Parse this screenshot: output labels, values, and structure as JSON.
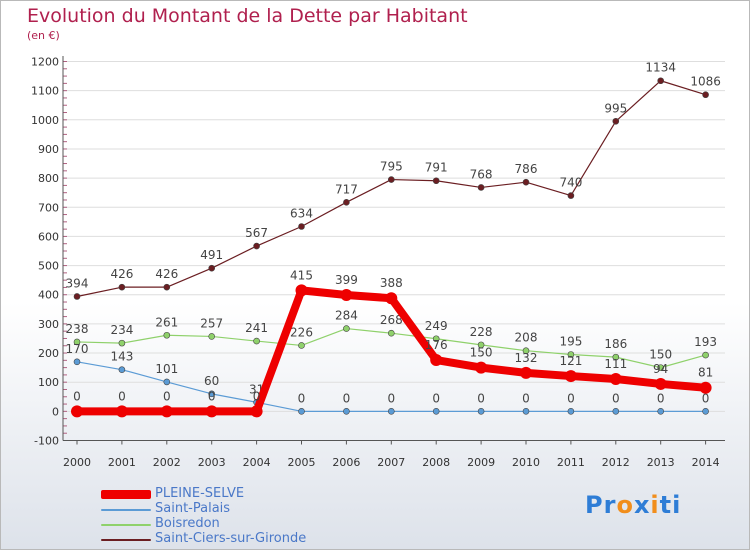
{
  "title": "Evolution du Montant de la Dette par Habitant",
  "subtitle": "(en €)",
  "logo_text": "Proxiti",
  "chart_data": {
    "type": "line",
    "title": "Evolution du Montant de la Dette par Habitant",
    "subtitle": "(en €)",
    "x": [
      "2000",
      "2001",
      "2002",
      "2003",
      "2004",
      "2005",
      "2006",
      "2007",
      "2008",
      "2009",
      "2010",
      "2011",
      "2012",
      "2013",
      "2014"
    ],
    "ylim": [
      -100,
      1200
    ],
    "yticks": [
      -100,
      0,
      100,
      200,
      300,
      400,
      500,
      600,
      700,
      800,
      900,
      1000,
      1100,
      1200
    ],
    "grid": true,
    "legend_position": "bottom-left",
    "series": [
      {
        "name": "PLEINE-SELVE",
        "color": "#ee0000",
        "values": [
          0,
          0,
          0,
          0,
          0,
          415,
          399,
          388,
          176,
          150,
          132,
          121,
          111,
          94,
          81
        ]
      },
      {
        "name": "Saint-Palais",
        "color": "#5b9bd5",
        "values": [
          170,
          143,
          101,
          60,
          31,
          0,
          0,
          0,
          0,
          0,
          0,
          0,
          0,
          0,
          0
        ]
      },
      {
        "name": "Boisredon",
        "color": "#8fd16b",
        "values": [
          238,
          234,
          261,
          257,
          241,
          226,
          284,
          268,
          249,
          228,
          208,
          195,
          186,
          150,
          193
        ]
      },
      {
        "name": "Saint-Ciers-sur-Gironde",
        "color": "#6b1e22",
        "values": [
          394,
          426,
          426,
          491,
          567,
          634,
          717,
          795,
          791,
          768,
          786,
          740,
          995,
          1134,
          1086
        ]
      }
    ]
  }
}
